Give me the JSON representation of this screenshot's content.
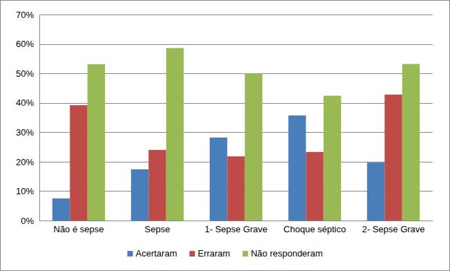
{
  "chart_data": {
    "type": "bar",
    "categories": [
      "Não é sepse",
      "Sepse",
      "1- Sepse Grave",
      "Choque séptico",
      "2- Sepse Grave"
    ],
    "series": [
      {
        "name": "Acertaram",
        "color": "#4a7ebb",
        "values": [
          7.5,
          17.4,
          28.2,
          35.7,
          19.7
        ]
      },
      {
        "name": "Erraram",
        "color": "#be4b48",
        "values": [
          39.2,
          24.0,
          21.8,
          23.3,
          42.8
        ]
      },
      {
        "name": "Não responderam",
        "color": "#98b954",
        "values": [
          53.1,
          58.6,
          50.0,
          42.4,
          53.2
        ]
      }
    ],
    "ylim": [
      0,
      70
    ],
    "yticks": [
      {
        "value": 0,
        "label": "0%"
      },
      {
        "value": 10,
        "label": "10%"
      },
      {
        "value": 20,
        "label": "20%"
      },
      {
        "value": 30,
        "label": "30%"
      },
      {
        "value": 40,
        "label": "40%"
      },
      {
        "value": 50,
        "label": "50%"
      },
      {
        "value": 60,
        "label": "60%"
      },
      {
        "value": 70,
        "label": "70%"
      }
    ],
    "grid": true,
    "legend": "bottom"
  }
}
